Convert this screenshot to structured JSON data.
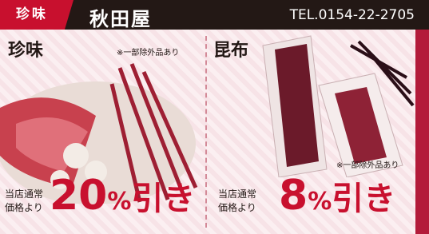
{
  "header": {
    "tag": "珍味",
    "shop": "秋田屋",
    "tel": "TEL.0154-22-2705"
  },
  "panels": [
    {
      "title": "珍味",
      "note": "※一部除外品あり",
      "line1": "当店通常",
      "line2": "価格より",
      "discount": 20,
      "unit": "%",
      "suffix": "引き"
    },
    {
      "title": "昆布",
      "note": "※一部除外品あり",
      "line1": "当店通常",
      "line2": "価格より",
      "discount": 8,
      "unit": "%",
      "suffix": "引き"
    }
  ]
}
